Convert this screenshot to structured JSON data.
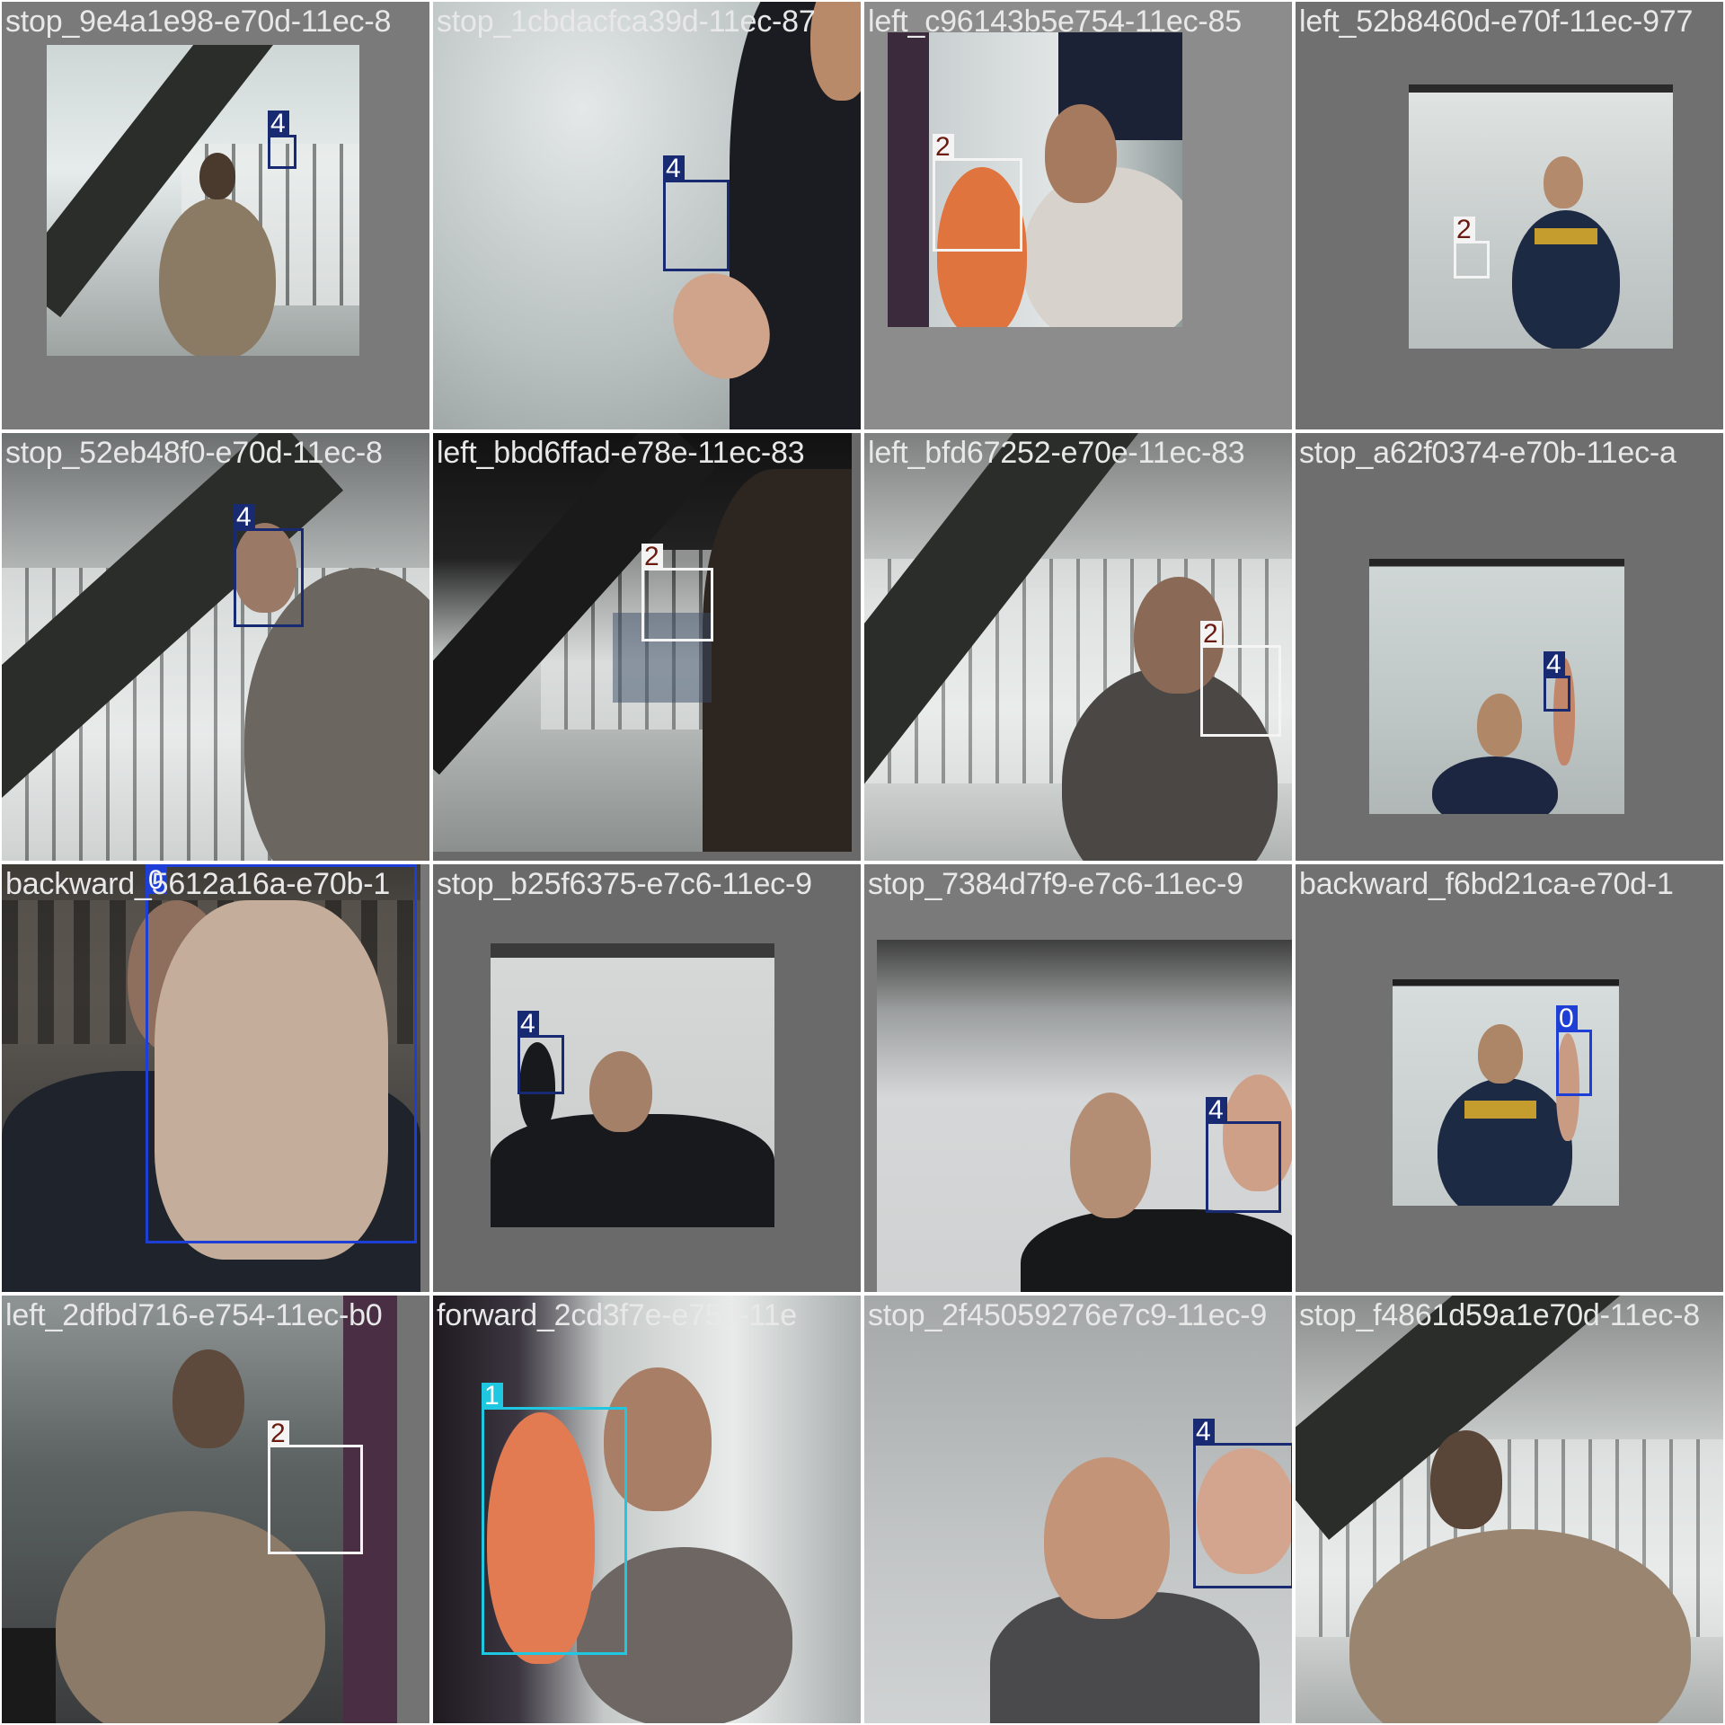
{
  "tiles": [
    {
      "captions": [
        "stop_9e4a1e98-e70d-11ec-8"
      ],
      "boxes": [
        {
          "cls": "4"
        }
      ]
    },
    {
      "captions": [
        "stop_1cbdacfca39d-11ec-87"
      ],
      "boxes": [
        {
          "cls": "4"
        }
      ]
    },
    {
      "captions": [
        "left_c96143b5e754-11ec-85"
      ],
      "boxes": [
        {
          "cls": "2"
        }
      ]
    },
    {
      "captions": [
        "left_52b8460d-e70f-11ec-977"
      ],
      "boxes": [
        {
          "cls": "2"
        }
      ]
    },
    {
      "captions": [
        "stop_52eb48f0-e70d-11ec-8"
      ],
      "boxes": [
        {
          "cls": "4"
        }
      ]
    },
    {
      "captions": [
        "left_bbd6ffad-e78e-11ec-83"
      ],
      "boxes": [
        {
          "cls": "2"
        }
      ]
    },
    {
      "captions": [
        "left_bfd67252-e70e-11ec-83"
      ],
      "boxes": [
        {
          "cls": "2"
        }
      ]
    },
    {
      "captions": [
        "stop_a62f0374-e70b-11ec-a"
      ],
      "boxes": [
        {
          "cls": "4"
        }
      ]
    },
    {
      "captions": [
        "backward_5612a16a-e70b-1"
      ],
      "boxes": [
        {
          "cls": "0"
        }
      ]
    },
    {
      "captions": [
        "stop_b25f6375-e7c6-11ec-9"
      ],
      "boxes": [
        {
          "cls": "4"
        }
      ]
    },
    {
      "captions": [
        "stop_7384d7f9-e7c6-11ec-9"
      ],
      "boxes": [
        {
          "cls": "4"
        }
      ]
    },
    {
      "captions": [
        "backward_f6bd21ca-e70d-1"
      ],
      "boxes": [
        {
          "cls": "0"
        }
      ]
    },
    {
      "captions": [
        "left_2dfbd716-e754-11ec-b0"
      ],
      "boxes": [
        {
          "cls": "2"
        }
      ]
    },
    {
      "captions": [
        "forward_2cd3f7e-e750-11e"
      ],
      "boxes": [
        {
          "cls": "1"
        }
      ]
    },
    {
      "captions": [
        "stop_2f45059276e7c9-11ec-9"
      ],
      "boxes": [
        {
          "cls": "4"
        }
      ]
    },
    {
      "captions": [
        "stop_f4861d59a1e70d-11ec-8"
      ],
      "boxes": []
    }
  ]
}
